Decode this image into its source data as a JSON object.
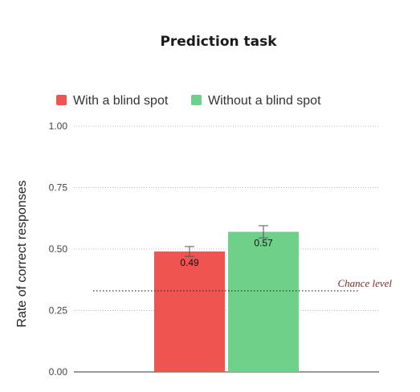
{
  "chart_data": {
    "type": "bar",
    "title": "Prediction task",
    "ylabel": "Rate of correct responses",
    "xlabel": "",
    "ylim": [
      0,
      1
    ],
    "yticks": [
      0,
      0.25,
      0.5,
      0.75,
      1
    ],
    "ytick_labels": [
      "0.00",
      "0.25",
      "0.50",
      "0.75",
      "1.00"
    ],
    "grid": "horizontal-dotted",
    "legend": "top",
    "series": [
      {
        "name": "With a blind spot",
        "value": 0.49,
        "error": 0.02,
        "label": "0.49",
        "color": "#f05451"
      },
      {
        "name": "Without a blind spot",
        "value": 0.57,
        "error": 0.025,
        "label": "0.57",
        "color": "#6fd08a"
      }
    ],
    "reference_line": {
      "value": 0.33,
      "label": "Chance level",
      "style": "dotted"
    }
  }
}
